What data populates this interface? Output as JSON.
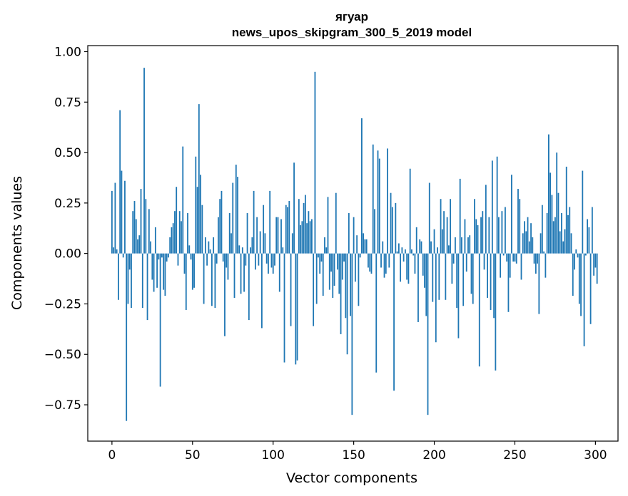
{
  "chart_data": {
    "type": "bar",
    "title": "ягуар",
    "subtitle": "news_upos_skipgram_300_5_2019 model",
    "xlabel": "Vector components",
    "ylabel": "Components values",
    "xlim": [
      -15,
      314
    ],
    "ylim": [
      -0.93,
      1.03
    ],
    "x_ticks": [
      0,
      50,
      100,
      150,
      200,
      250,
      300
    ],
    "x_tick_labels": [
      "0",
      "50",
      "100",
      "150",
      "200",
      "250",
      "300"
    ],
    "y_ticks": [
      1.0,
      0.75,
      0.5,
      0.25,
      0.0,
      -0.25,
      -0.5,
      -0.75
    ],
    "y_tick_labels": [
      "1.00",
      "0.75",
      "0.50",
      "0.25",
      "0.00",
      "−0.25",
      "−0.50",
      "−0.75"
    ],
    "bar_color": "#1f77b4",
    "values": [
      0.31,
      0.03,
      0.35,
      0.02,
      -0.23,
      0.71,
      0.41,
      -0.02,
      0.36,
      -0.83,
      -0.25,
      -0.08,
      -0.27,
      0.21,
      0.26,
      0.17,
      0.07,
      0.09,
      0.32,
      -0.27,
      0.92,
      0.27,
      -0.33,
      0.22,
      0.06,
      -0.13,
      -0.19,
      0.13,
      -0.17,
      -0.03,
      -0.66,
      -0.02,
      -0.18,
      -0.21,
      -0.04,
      -0.02,
      0.08,
      0.13,
      0.15,
      0.21,
      0.33,
      -0.06,
      0.21,
      0.16,
      0.53,
      -0.1,
      -0.28,
      0.2,
      0.04,
      -0.03,
      -0.18,
      -0.17,
      0.48,
      0.33,
      0.74,
      0.39,
      0.24,
      -0.25,
      0.08,
      -0.06,
      0.06,
      0.02,
      -0.26,
      0.08,
      -0.27,
      -0.05,
      0.18,
      0.27,
      0.31,
      -0.04,
      -0.41,
      -0.07,
      -0.13,
      0.2,
      0.1,
      0.35,
      -0.22,
      0.44,
      0.38,
      0.04,
      -0.2,
      0.03,
      -0.19,
      -0.06,
      0.2,
      -0.33,
      0.03,
      0.08,
      0.31,
      -0.08,
      0.18,
      -0.06,
      0.11,
      -0.37,
      0.24,
      0.1,
      -0.05,
      -0.1,
      0.31,
      -0.07,
      -0.1,
      -0.06,
      0.18,
      0.18,
      -0.19,
      0.17,
      0.03,
      -0.54,
      0.24,
      0.23,
      0.26,
      -0.36,
      0.1,
      0.45,
      -0.55,
      -0.53,
      0.27,
      0.14,
      0.16,
      0.25,
      0.29,
      0.15,
      0.21,
      0.16,
      0.17,
      -0.36,
      0.9,
      -0.25,
      -0.02,
      -0.1,
      -0.04,
      -0.21,
      0.08,
      0.03,
      0.28,
      -0.18,
      -0.09,
      -0.22,
      -0.16,
      0.3,
      -0.08,
      -0.2,
      -0.4,
      -0.13,
      -0.04,
      -0.32,
      -0.5,
      0.2,
      -0.31,
      -0.8,
      0.18,
      -0.14,
      0.09,
      -0.26,
      -0.02,
      0.67,
      0.1,
      0.07,
      0.07,
      -0.07,
      -0.09,
      -0.1,
      0.54,
      0.22,
      -0.59,
      0.51,
      0.47,
      -0.07,
      0.06,
      -0.12,
      -0.1,
      0.52,
      -0.07,
      0.3,
      0.23,
      -0.68,
      0.25,
      0.01,
      0.05,
      -0.14,
      0.03,
      -0.04,
      0.02,
      -0.13,
      -0.15,
      0.42,
      0.02,
      -0.01,
      -0.1,
      0.13,
      -0.34,
      0.07,
      0.06,
      -0.11,
      -0.17,
      -0.31,
      -0.8,
      0.35,
      0.06,
      -0.24,
      0.12,
      -0.44,
      0.03,
      -0.23,
      0.27,
      0.12,
      0.21,
      -0.23,
      0.18,
      0.04,
      0.27,
      -0.15,
      -0.05,
      0.08,
      -0.27,
      -0.42,
      0.37,
      0.08,
      -0.26,
      0.17,
      -0.09,
      0.08,
      0.09,
      -0.2,
      -0.25,
      0.27,
      0.17,
      0.14,
      -0.56,
      0.18,
      0.21,
      -0.08,
      0.34,
      -0.22,
      0.18,
      -0.28,
      0.46,
      -0.32,
      -0.58,
      0.48,
      0.18,
      -0.12,
      0.21,
      -0.01,
      0.23,
      -0.04,
      -0.29,
      -0.12,
      0.39,
      -0.04,
      -0.04,
      -0.05,
      0.32,
      0.27,
      -0.13,
      0.1,
      0.16,
      0.11,
      0.18,
      0.06,
      0.15,
      0.08,
      -0.05,
      -0.1,
      -0.05,
      -0.3,
      0.1,
      0.24,
      0.01,
      -0.12,
      0.2,
      0.59,
      0.4,
      0.29,
      0.16,
      0.18,
      0.5,
      0.3,
      0.11,
      0.2,
      0.06,
      0.12,
      0.43,
      0.19,
      0.23,
      0.1,
      -0.21,
      -0.08,
      0.02,
      -0.02,
      -0.25,
      -0.31,
      0.41,
      -0.46,
      -0.01,
      0.17,
      0.13,
      -0.35,
      0.23,
      -0.11,
      -0.07,
      -0.15
    ]
  }
}
